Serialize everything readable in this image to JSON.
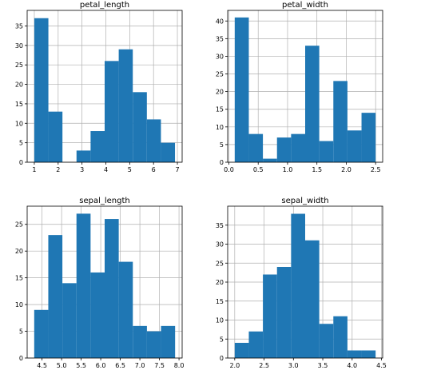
{
  "chart_data": [
    {
      "type": "bar",
      "title": "petal_length",
      "bin_edges": [
        1.0,
        1.59,
        2.18,
        2.77,
        3.36,
        3.95,
        4.54,
        5.13,
        5.72,
        6.31,
        6.9
      ],
      "values": [
        37,
        13,
        0,
        3,
        8,
        26,
        29,
        18,
        11,
        5
      ],
      "xlim": [
        0.7,
        7.2
      ],
      "ylim": [
        0,
        39
      ],
      "xticks": [
        1,
        2,
        3,
        4,
        5,
        6,
        7
      ],
      "xtick_labels": [
        "1",
        "2",
        "3",
        "4",
        "5",
        "6",
        "7"
      ],
      "yticks": [
        0,
        5,
        10,
        15,
        20,
        25,
        30,
        35
      ],
      "ytick_labels": [
        "0",
        "5",
        "10",
        "15",
        "20",
        "25",
        "30",
        "35"
      ],
      "grid": true,
      "color": "#1f77b4"
    },
    {
      "type": "bar",
      "title": "petal_width",
      "bin_edges": [
        0.1,
        0.34,
        0.58,
        0.82,
        1.06,
        1.3,
        1.54,
        1.78,
        2.02,
        2.26,
        2.5
      ],
      "values": [
        41,
        8,
        1,
        7,
        8,
        33,
        6,
        23,
        9,
        14
      ],
      "xlim": [
        -0.02,
        2.62
      ],
      "ylim": [
        0,
        43
      ],
      "xticks": [
        0,
        0.5,
        1,
        1.5,
        2,
        2.5
      ],
      "xtick_labels": [
        "0.0",
        "0.5",
        "1.0",
        "1.5",
        "2.0",
        "2.5"
      ],
      "yticks": [
        0,
        5,
        10,
        15,
        20,
        25,
        30,
        35,
        40
      ],
      "ytick_labels": [
        "0",
        "5",
        "10",
        "15",
        "20",
        "25",
        "30",
        "35",
        "40"
      ],
      "grid": true,
      "color": "#1f77b4"
    },
    {
      "type": "bar",
      "title": "sepal_length",
      "bin_edges": [
        4.3,
        4.66,
        5.02,
        5.38,
        5.74,
        6.1,
        6.46,
        6.82,
        7.18,
        7.54,
        7.9
      ],
      "values": [
        9,
        23,
        14,
        27,
        16,
        26,
        18,
        6,
        5,
        6
      ],
      "xlim": [
        4.12,
        8.08
      ],
      "ylim": [
        0,
        28.4
      ],
      "xticks": [
        4.5,
        5,
        5.5,
        6,
        6.5,
        7,
        7.5,
        8
      ],
      "xtick_labels": [
        "4.5",
        "5.0",
        "5.5",
        "6.0",
        "6.5",
        "7.0",
        "7.5",
        "8.0"
      ],
      "yticks": [
        0,
        5,
        10,
        15,
        20,
        25
      ],
      "ytick_labels": [
        "0",
        "5",
        "10",
        "15",
        "20",
        "25"
      ],
      "grid": true,
      "color": "#1f77b4"
    },
    {
      "type": "bar",
      "title": "sepal_width",
      "bin_edges": [
        2.0,
        2.24,
        2.48,
        2.72,
        2.96,
        3.2,
        3.44,
        3.68,
        3.92,
        4.16,
        4.4
      ],
      "values": [
        4,
        7,
        22,
        24,
        38,
        31,
        9,
        11,
        2,
        2
      ],
      "xlim": [
        1.88,
        4.52
      ],
      "ylim": [
        0,
        40
      ],
      "xticks": [
        2,
        2.5,
        3,
        3.5,
        4,
        4.5
      ],
      "xtick_labels": [
        "2.0",
        "2.5",
        "3.0",
        "3.5",
        "4.0",
        "4.5"
      ],
      "yticks": [
        0,
        5,
        10,
        15,
        20,
        25,
        30,
        35
      ],
      "ytick_labels": [
        "0",
        "5",
        "10",
        "15",
        "20",
        "25",
        "30",
        "35"
      ],
      "grid": true,
      "color": "#1f77b4"
    }
  ]
}
